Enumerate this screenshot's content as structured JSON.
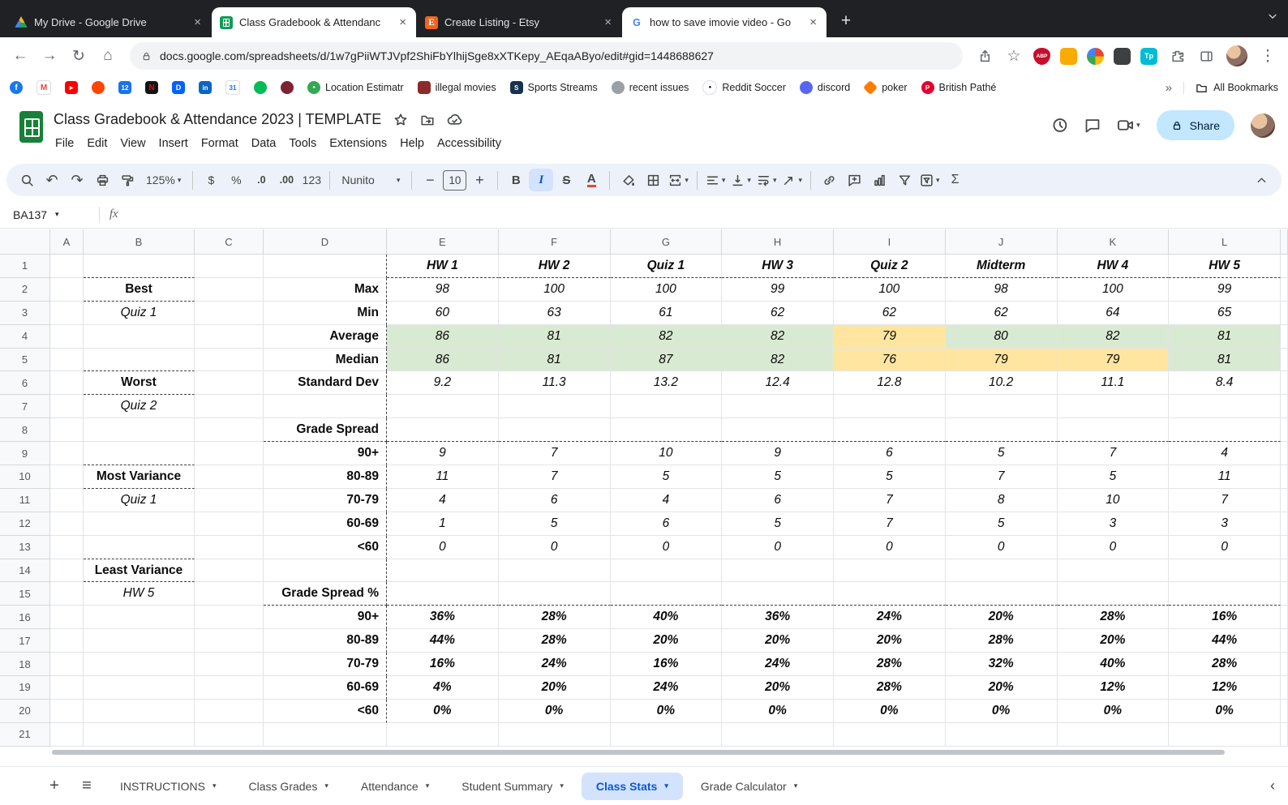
{
  "colors": {
    "accent_blue": "#0b57d0",
    "highlight_green": "#d9ead3",
    "highlight_yellow": "#ffe59f",
    "share_button_bg": "#c2e7ff",
    "active_sheet_tab_bg": "#d3e3fd",
    "tabstrip_bg": "#202124",
    "toolbar_bg": "#edf2fa",
    "sheets_green": "#188038"
  },
  "icons": {
    "caret_down": "▾",
    "close": "×",
    "plus": "+",
    "minus": "−",
    "kebab": "⋮",
    "hamburger": "≡",
    "chevron_left": "‹",
    "overflow": "»",
    "back": "←",
    "forward": "→",
    "reload": "↻",
    "home": "⌂",
    "star": "☆",
    "undo": "↶",
    "redo": "↷",
    "sigma": "Σ"
  },
  "browser": {
    "tabs": [
      {
        "title": "My Drive - Google Drive",
        "icon": "drive",
        "state": "dark"
      },
      {
        "title": "Class Gradebook & Attendanc",
        "icon": "sheets",
        "state": "active"
      },
      {
        "title": "Create Listing - Etsy",
        "icon": "etsy",
        "state": "dark"
      },
      {
        "title": "how to save imovie video - Go",
        "icon": "google",
        "state": "light"
      }
    ],
    "url": "docs.google.com/spreadsheets/d/1w7gPiiWTJVpf2ShiFbYlhijSge8xXTKepy_AEqaAByo/edit#gid=1448688627",
    "extensions": {
      "abp": "ABP",
      "tp": "Tp"
    },
    "bookmarks": [
      {
        "icon": "facebook"
      },
      {
        "icon": "gmail"
      },
      {
        "icon": "youtube"
      },
      {
        "icon": "reddit"
      },
      {
        "icon": "calendar"
      },
      {
        "icon": "netflix"
      },
      {
        "icon": "dropbox"
      },
      {
        "icon": "linkedin"
      },
      {
        "icon": "gcal"
      },
      {
        "icon": "messages"
      },
      {
        "icon": "podcasts"
      },
      {
        "icon": "location-pin",
        "label": "Location Estimatr"
      },
      {
        "icon": "movies",
        "label": "illegal movies"
      },
      {
        "icon": "sports",
        "label": "Sports Streams"
      },
      {
        "icon": "issues",
        "label": "recent issues"
      },
      {
        "icon": "soccer",
        "label": "Reddit Soccer"
      },
      {
        "icon": "discord",
        "label": "discord"
      },
      {
        "icon": "poker",
        "label": "poker"
      },
      {
        "icon": "pathe",
        "label": "British Pathé"
      }
    ],
    "all_bookmarks_label": "All Bookmarks"
  },
  "app": {
    "title": "Class Gradebook & Attendance 2023 | TEMPLATE",
    "menus": [
      "File",
      "Edit",
      "View",
      "Insert",
      "Format",
      "Data",
      "Tools",
      "Extensions",
      "Help",
      "Accessibility"
    ],
    "share_label": "Share",
    "toolbar": {
      "zoom": "125%",
      "currency": "$",
      "percent": "%",
      "decimal_decrease": ".0",
      "decimal_increase": ".00",
      "number_format": "123",
      "font": "Nunito",
      "font_size": "10",
      "bold": "B",
      "italic": "I",
      "strikethrough": "S",
      "text_color": "A"
    },
    "formula_bar": {
      "name_box": "BA137",
      "fx": "fx"
    }
  },
  "sheet": {
    "columns": [
      "A",
      "B",
      "C",
      "D",
      "E",
      "F",
      "G",
      "H",
      "I",
      "J",
      "K",
      "L"
    ],
    "num_rows": 21,
    "tabs": [
      {
        "label": "INSTRUCTIONS"
      },
      {
        "label": "Class Grades"
      },
      {
        "label": "Attendance"
      },
      {
        "label": "Student Summary"
      },
      {
        "label": "Class Stats",
        "active": true
      },
      {
        "label": "Grade Calculator"
      }
    ],
    "cells": [
      [
        "B1",
        "",
        "db"
      ],
      [
        "D1",
        "",
        "dr"
      ],
      [
        "E1",
        "HW 1",
        "head db"
      ],
      [
        "F1",
        "HW 2",
        "head db"
      ],
      [
        "G1",
        "Quiz 1",
        "head db"
      ],
      [
        "H1",
        "HW 3",
        "head db"
      ],
      [
        "I1",
        "Quiz 2",
        "head db"
      ],
      [
        "J1",
        "Midterm",
        "head db"
      ],
      [
        "K1",
        "HW 4",
        "head db"
      ],
      [
        "L1",
        "HW 5",
        "head db"
      ],
      [
        "B2",
        "Best",
        "lblb db"
      ],
      [
        "D2",
        "Max",
        "dlbl dr"
      ],
      [
        "E2",
        "98",
        "num"
      ],
      [
        "F2",
        "100",
        "num"
      ],
      [
        "G2",
        "100",
        "num"
      ],
      [
        "H2",
        "99",
        "num"
      ],
      [
        "I2",
        "100",
        "num"
      ],
      [
        "J2",
        "98",
        "num"
      ],
      [
        "K2",
        "100",
        "num"
      ],
      [
        "L2",
        "99",
        "num"
      ],
      [
        "B3",
        "Quiz 1",
        "lbli"
      ],
      [
        "D3",
        "Min",
        "dlbl dr"
      ],
      [
        "E3",
        "60",
        "num"
      ],
      [
        "F3",
        "63",
        "num"
      ],
      [
        "G3",
        "61",
        "num"
      ],
      [
        "H3",
        "62",
        "num"
      ],
      [
        "I3",
        "62",
        "num"
      ],
      [
        "J3",
        "62",
        "num"
      ],
      [
        "K3",
        "64",
        "num"
      ],
      [
        "L3",
        "65",
        "num"
      ],
      [
        "D4",
        "Average",
        "dlbl dr"
      ],
      [
        "E4",
        "86",
        "num g"
      ],
      [
        "F4",
        "81",
        "num g"
      ],
      [
        "G4",
        "82",
        "num g"
      ],
      [
        "H4",
        "82",
        "num g"
      ],
      [
        "I4",
        "79",
        "num y"
      ],
      [
        "J4",
        "80",
        "num g"
      ],
      [
        "K4",
        "82",
        "num g"
      ],
      [
        "L4",
        "81",
        "num g"
      ],
      [
        "B5",
        "",
        "db"
      ],
      [
        "D5",
        "Median",
        "dlbl dr"
      ],
      [
        "E5",
        "86",
        "num g"
      ],
      [
        "F5",
        "81",
        "num g"
      ],
      [
        "G5",
        "87",
        "num g"
      ],
      [
        "H5",
        "82",
        "num g"
      ],
      [
        "I5",
        "76",
        "num y"
      ],
      [
        "J5",
        "79",
        "num y"
      ],
      [
        "K5",
        "79",
        "num y"
      ],
      [
        "L5",
        "81",
        "num g"
      ],
      [
        "B6",
        "Worst",
        "lblb db"
      ],
      [
        "D6",
        "Standard Dev",
        "dlbl dr"
      ],
      [
        "E6",
        "9.2",
        "num"
      ],
      [
        "F6",
        "11.3",
        "num"
      ],
      [
        "G6",
        "13.2",
        "num"
      ],
      [
        "H6",
        "12.4",
        "num"
      ],
      [
        "I6",
        "12.8",
        "num"
      ],
      [
        "J6",
        "10.2",
        "num"
      ],
      [
        "K6",
        "11.1",
        "num"
      ],
      [
        "L6",
        "8.4",
        "num"
      ],
      [
        "B7",
        "Quiz 2",
        "lbli"
      ],
      [
        "D7",
        "",
        "dr"
      ],
      [
        "D8",
        "Grade Spread",
        "dlbl dr db"
      ],
      [
        "E8",
        "",
        "db"
      ],
      [
        "F8",
        "",
        "db"
      ],
      [
        "G8",
        "",
        "db"
      ],
      [
        "H8",
        "",
        "db"
      ],
      [
        "I8",
        "",
        "db"
      ],
      [
        "J8",
        "",
        "db"
      ],
      [
        "K8",
        "",
        "db"
      ],
      [
        "L8",
        "",
        "db"
      ],
      [
        "B9",
        "",
        "db"
      ],
      [
        "D9",
        "90+",
        "dlbl dr"
      ],
      [
        "E9",
        "9",
        "num"
      ],
      [
        "F9",
        "7",
        "num"
      ],
      [
        "G9",
        "10",
        "num"
      ],
      [
        "H9",
        "9",
        "num"
      ],
      [
        "I9",
        "6",
        "num"
      ],
      [
        "J9",
        "5",
        "num"
      ],
      [
        "K9",
        "7",
        "num"
      ],
      [
        "L9",
        "4",
        "num"
      ],
      [
        "B10",
        "Most Variance",
        "lblb db"
      ],
      [
        "D10",
        "80-89",
        "dlbl dr"
      ],
      [
        "E10",
        "11",
        "num"
      ],
      [
        "F10",
        "7",
        "num"
      ],
      [
        "G10",
        "5",
        "num"
      ],
      [
        "H10",
        "5",
        "num"
      ],
      [
        "I10",
        "5",
        "num"
      ],
      [
        "J10",
        "7",
        "num"
      ],
      [
        "K10",
        "5",
        "num"
      ],
      [
        "L10",
        "11",
        "num"
      ],
      [
        "B11",
        "Quiz 1",
        "lbli"
      ],
      [
        "D11",
        "70-79",
        "dlbl dr"
      ],
      [
        "E11",
        "4",
        "num"
      ],
      [
        "F11",
        "6",
        "num"
      ],
      [
        "G11",
        "4",
        "num"
      ],
      [
        "H11",
        "6",
        "num"
      ],
      [
        "I11",
        "7",
        "num"
      ],
      [
        "J11",
        "8",
        "num"
      ],
      [
        "K11",
        "10",
        "num"
      ],
      [
        "L11",
        "7",
        "num"
      ],
      [
        "D12",
        "60-69",
        "dlbl dr"
      ],
      [
        "E12",
        "1",
        "num"
      ],
      [
        "F12",
        "5",
        "num"
      ],
      [
        "G12",
        "6",
        "num"
      ],
      [
        "H12",
        "5",
        "num"
      ],
      [
        "I12",
        "7",
        "num"
      ],
      [
        "J12",
        "5",
        "num"
      ],
      [
        "K12",
        "3",
        "num"
      ],
      [
        "L12",
        "3",
        "num"
      ],
      [
        "B13",
        "",
        "db"
      ],
      [
        "D13",
        "<60",
        "dlbl dr"
      ],
      [
        "E13",
        "0",
        "num"
      ],
      [
        "F13",
        "0",
        "num"
      ],
      [
        "G13",
        "0",
        "num"
      ],
      [
        "H13",
        "0",
        "num"
      ],
      [
        "I13",
        "0",
        "num"
      ],
      [
        "J13",
        "0",
        "num"
      ],
      [
        "K13",
        "0",
        "num"
      ],
      [
        "L13",
        "0",
        "num"
      ],
      [
        "B14",
        "Least Variance",
        "lblb db"
      ],
      [
        "D14",
        "",
        "dr"
      ],
      [
        "B15",
        "HW 5",
        "lbli"
      ],
      [
        "D15",
        "Grade Spread %",
        "dlbl dr db"
      ],
      [
        "E15",
        "",
        "db"
      ],
      [
        "F15",
        "",
        "db"
      ],
      [
        "G15",
        "",
        "db"
      ],
      [
        "H15",
        "",
        "db"
      ],
      [
        "I15",
        "",
        "db"
      ],
      [
        "J15",
        "",
        "db"
      ],
      [
        "K15",
        "",
        "db"
      ],
      [
        "L15",
        "",
        "db"
      ],
      [
        "D16",
        "90+",
        "dlbl dr"
      ],
      [
        "E16",
        "36%",
        "pct"
      ],
      [
        "F16",
        "28%",
        "pct"
      ],
      [
        "G16",
        "40%",
        "pct"
      ],
      [
        "H16",
        "36%",
        "pct"
      ],
      [
        "I16",
        "24%",
        "pct"
      ],
      [
        "J16",
        "20%",
        "pct"
      ],
      [
        "K16",
        "28%",
        "pct"
      ],
      [
        "L16",
        "16%",
        "pct"
      ],
      [
        "D17",
        "80-89",
        "dlbl dr"
      ],
      [
        "E17",
        "44%",
        "pct"
      ],
      [
        "F17",
        "28%",
        "pct"
      ],
      [
        "G17",
        "20%",
        "pct"
      ],
      [
        "H17",
        "20%",
        "pct"
      ],
      [
        "I17",
        "20%",
        "pct"
      ],
      [
        "J17",
        "28%",
        "pct"
      ],
      [
        "K17",
        "20%",
        "pct"
      ],
      [
        "L17",
        "44%",
        "pct"
      ],
      [
        "D18",
        "70-79",
        "dlbl dr"
      ],
      [
        "E18",
        "16%",
        "pct"
      ],
      [
        "F18",
        "24%",
        "pct"
      ],
      [
        "G18",
        "16%",
        "pct"
      ],
      [
        "H18",
        "24%",
        "pct"
      ],
      [
        "I18",
        "28%",
        "pct"
      ],
      [
        "J18",
        "32%",
        "pct"
      ],
      [
        "K18",
        "40%",
        "pct"
      ],
      [
        "L18",
        "28%",
        "pct"
      ],
      [
        "D19",
        "60-69",
        "dlbl dr"
      ],
      [
        "E19",
        "4%",
        "pct"
      ],
      [
        "F19",
        "20%",
        "pct"
      ],
      [
        "G19",
        "24%",
        "pct"
      ],
      [
        "H19",
        "20%",
        "pct"
      ],
      [
        "I19",
        "28%",
        "pct"
      ],
      [
        "J19",
        "20%",
        "pct"
      ],
      [
        "K19",
        "12%",
        "pct"
      ],
      [
        "L19",
        "12%",
        "pct"
      ],
      [
        "D20",
        "<60",
        "dlbl dr"
      ],
      [
        "E20",
        "0%",
        "pct"
      ],
      [
        "F20",
        "0%",
        "pct"
      ],
      [
        "G20",
        "0%",
        "pct"
      ],
      [
        "H20",
        "0%",
        "pct"
      ],
      [
        "I20",
        "0%",
        "pct"
      ],
      [
        "J20",
        "0%",
        "pct"
      ],
      [
        "K20",
        "0%",
        "pct"
      ],
      [
        "L20",
        "0%",
        "pct"
      ]
    ]
  }
}
